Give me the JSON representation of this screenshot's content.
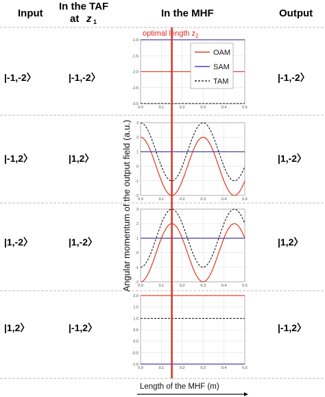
{
  "headers": {
    "input": "Input",
    "taf_line1": "In the TAF",
    "taf_line2": "at",
    "taf_z": "z",
    "taf_sub": "1",
    "mhf": "In the MHF",
    "output": "Output"
  },
  "rows": [
    {
      "input": "|-1,-2〉",
      "taf": "|-1,-2〉",
      "output": "|-1,-2〉"
    },
    {
      "input": "|-1,2〉",
      "taf": "|1,2〉",
      "output": "|1,-2〉"
    },
    {
      "input": "|1,-2〉",
      "taf": "|1,-2〉",
      "output": "|1,2〉"
    },
    {
      "input": "|1,2〉",
      "taf": "|-1,2〉",
      "output": "|-1,2〉"
    }
  ],
  "optimal_label": {
    "text": "optimal length z",
    "sub": "2"
  },
  "y_axis_label": "Angular momentum of the output field (a.u.)",
  "x_axis_label": "Length of the MHF (m)",
  "colors": {
    "oam": "#e0432b",
    "sam": "#4b3fa8",
    "tam": "#000000",
    "optimal_line": "#d9281e",
    "grid": "#cfcfcf"
  },
  "chart_data": [
    {
      "type": "line",
      "xlim": [
        0,
        0.5
      ],
      "ylim": [
        -3,
        -1
      ],
      "xticks": [
        "0.0",
        "0.1",
        "0.2",
        "0.3",
        "0.4",
        "0.5"
      ],
      "yticks": [
        "-1.0",
        "-1.5",
        "-2.0",
        "-2.5",
        "-3.0"
      ],
      "ytick_values": [
        -1,
        -1.5,
        -2,
        -2.5,
        -3
      ],
      "optimal_x": 0.15,
      "legend": {
        "position": "top-right",
        "entries": [
          "OAM",
          "SAM",
          "TAM"
        ]
      },
      "series": [
        {
          "name": "OAM",
          "kind": "const",
          "value": -2
        },
        {
          "name": "SAM",
          "kind": "const",
          "value": -1
        },
        {
          "name": "TAM",
          "kind": "const",
          "value": -3
        }
      ]
    },
    {
      "type": "line",
      "xlim": [
        0,
        0.5
      ],
      "ylim": [
        -2,
        3
      ],
      "xticks": [
        "0.0",
        "0.1",
        "0.2",
        "0.3",
        "0.4",
        "0.5"
      ],
      "yticks": [
        "3",
        "2",
        "1",
        "0",
        "-1",
        "-2"
      ],
      "ytick_values": [
        3,
        2,
        1,
        0,
        -1,
        -2
      ],
      "optimal_x": 0.15,
      "series": [
        {
          "name": "OAM",
          "kind": "cos",
          "offset": 0,
          "amplitude": 2,
          "period": 0.3,
          "phase": 0
        },
        {
          "name": "SAM",
          "kind": "const",
          "value": 1
        },
        {
          "name": "TAM",
          "kind": "cos",
          "offset": 1,
          "amplitude": 2,
          "period": 0.3,
          "phase": 0
        }
      ]
    },
    {
      "type": "line",
      "xlim": [
        0,
        0.5
      ],
      "ylim": [
        -2,
        3
      ],
      "xticks": [
        "0.0",
        "0.1",
        "0.2",
        "0.3",
        "0.4",
        "0.5"
      ],
      "yticks": [
        "3",
        "2",
        "1",
        "0",
        "-1",
        "-2"
      ],
      "ytick_values": [
        3,
        2,
        1,
        0,
        -1,
        -2
      ],
      "optimal_x": 0.15,
      "series": [
        {
          "name": "OAM",
          "kind": "cos",
          "offset": 0,
          "amplitude": -2,
          "period": 0.3,
          "phase": 0
        },
        {
          "name": "SAM",
          "kind": "const",
          "value": 1
        },
        {
          "name": "TAM",
          "kind": "cos",
          "offset": 1,
          "amplitude": -2,
          "period": 0.3,
          "phase": 0
        }
      ]
    },
    {
      "type": "line",
      "xlim": [
        0,
        0.5
      ],
      "ylim": [
        -1,
        2
      ],
      "xticks": [
        "0.0",
        "0.1",
        "0.2",
        "0.3",
        "0.4",
        "0.5"
      ],
      "yticks": [
        "2.0",
        "1.5",
        "1.0",
        "0.5",
        "0.0",
        "-0.5",
        "-1.0"
      ],
      "ytick_values": [
        2,
        1.5,
        1,
        0.5,
        0,
        -0.5,
        -1
      ],
      "optimal_x": 0.15,
      "series": [
        {
          "name": "OAM",
          "kind": "const",
          "value": 2
        },
        {
          "name": "SAM",
          "kind": "const",
          "value": -1
        },
        {
          "name": "TAM",
          "kind": "const",
          "value": 1
        }
      ]
    }
  ]
}
